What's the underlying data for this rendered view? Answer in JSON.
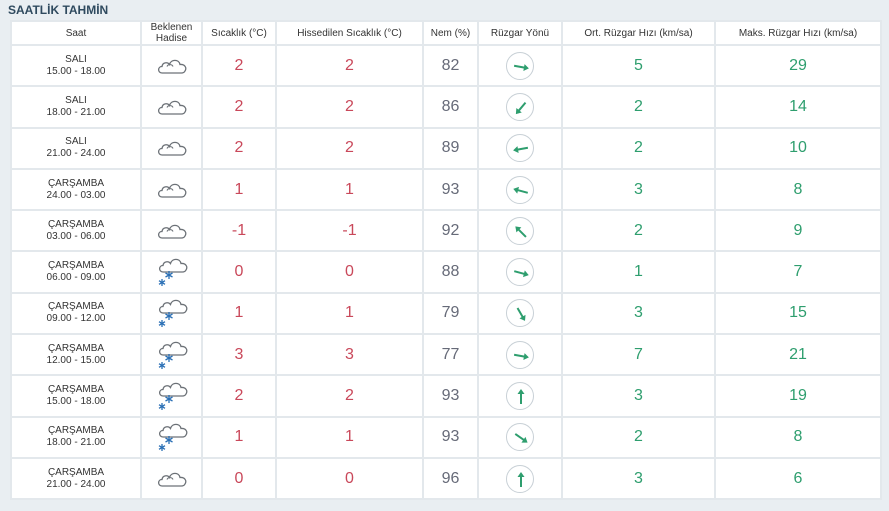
{
  "section_title": "SAATLİK TAHMİN",
  "headers": {
    "time": "Saat",
    "event": "Beklenen Hadise",
    "temp": "Sıcaklık (°C)",
    "feels": "Hissedilen Sıcaklık (°C)",
    "humidity": "Nem (%)",
    "wind_dir": "Rüzgar Yönü",
    "wind_avg": "Ort. Rüzgar Hızı (km/sa)",
    "wind_max": "Maks. Rüzgar Hızı (km/sa)"
  },
  "colors": {
    "temperature": "#c9485a",
    "humidity": "#666a78",
    "wind": "#2e9e6e",
    "arrow": "#2e9e6e"
  },
  "rows": [
    {
      "day": "SALI",
      "range": "15.00 - 18.00",
      "icon": "cloud-icon",
      "temp": "2",
      "feels": "2",
      "humidity": "82",
      "wind_dir_icon": "arrow-right-down-icon",
      "wind_rotation": 100,
      "wind_avg": "5",
      "wind_max": "29"
    },
    {
      "day": "SALI",
      "range": "18.00 - 21.00",
      "icon": "cloud-icon",
      "temp": "2",
      "feels": "2",
      "humidity": "86",
      "wind_dir_icon": "arrow-down-left-icon",
      "wind_rotation": 220,
      "wind_avg": "2",
      "wind_max": "14"
    },
    {
      "day": "SALI",
      "range": "21.00 - 24.00",
      "icon": "cloud-icon",
      "temp": "2",
      "feels": "2",
      "humidity": "89",
      "wind_dir_icon": "arrow-left-icon",
      "wind_rotation": 260,
      "wind_avg": "2",
      "wind_max": "10"
    },
    {
      "day": "ÇARŞAMBA",
      "range": "24.00 - 03.00",
      "icon": "cloud-icon",
      "temp": "1",
      "feels": "1",
      "humidity": "93",
      "wind_dir_icon": "arrow-left-icon",
      "wind_rotation": 285,
      "wind_avg": "3",
      "wind_max": "8"
    },
    {
      "day": "ÇARŞAMBA",
      "range": "03.00 - 06.00",
      "icon": "cloud-icon",
      "temp": "-1",
      "feels": "-1",
      "humidity": "92",
      "wind_dir_icon": "arrow-up-left-icon",
      "wind_rotation": 315,
      "wind_avg": "2",
      "wind_max": "9"
    },
    {
      "day": "ÇARŞAMBA",
      "range": "06.00 - 09.00",
      "icon": "snow-cloud-icon",
      "temp": "0",
      "feels": "0",
      "humidity": "88",
      "wind_dir_icon": "arrow-right-down-icon",
      "wind_rotation": 105,
      "wind_avg": "1",
      "wind_max": "7"
    },
    {
      "day": "ÇARŞAMBA",
      "range": "09.00 - 12.00",
      "icon": "snow-cloud-icon",
      "temp": "1",
      "feels": "1",
      "humidity": "79",
      "wind_dir_icon": "arrow-down-right-icon",
      "wind_rotation": 150,
      "wind_avg": "3",
      "wind_max": "15"
    },
    {
      "day": "ÇARŞAMBA",
      "range": "12.00 - 15.00",
      "icon": "snow-cloud-icon",
      "temp": "3",
      "feels": "3",
      "humidity": "77",
      "wind_dir_icon": "arrow-right-down-icon",
      "wind_rotation": 100,
      "wind_avg": "7",
      "wind_max": "21"
    },
    {
      "day": "ÇARŞAMBA",
      "range": "15.00 - 18.00",
      "icon": "snow-cloud-icon",
      "temp": "2",
      "feels": "2",
      "humidity": "93",
      "wind_dir_icon": "arrow-up-icon",
      "wind_rotation": 0,
      "wind_avg": "3",
      "wind_max": "19"
    },
    {
      "day": "ÇARŞAMBA",
      "range": "18.00 - 21.00",
      "icon": "snow-cloud-icon",
      "temp": "1",
      "feels": "1",
      "humidity": "93",
      "wind_dir_icon": "arrow-down-right-icon",
      "wind_rotation": 125,
      "wind_avg": "2",
      "wind_max": "8"
    },
    {
      "day": "ÇARŞAMBA",
      "range": "21.00 - 24.00",
      "icon": "cloud-icon",
      "temp": "0",
      "feels": "0",
      "humidity": "96",
      "wind_dir_icon": "arrow-up-icon",
      "wind_rotation": 0,
      "wind_avg": "3",
      "wind_max": "6"
    }
  ]
}
